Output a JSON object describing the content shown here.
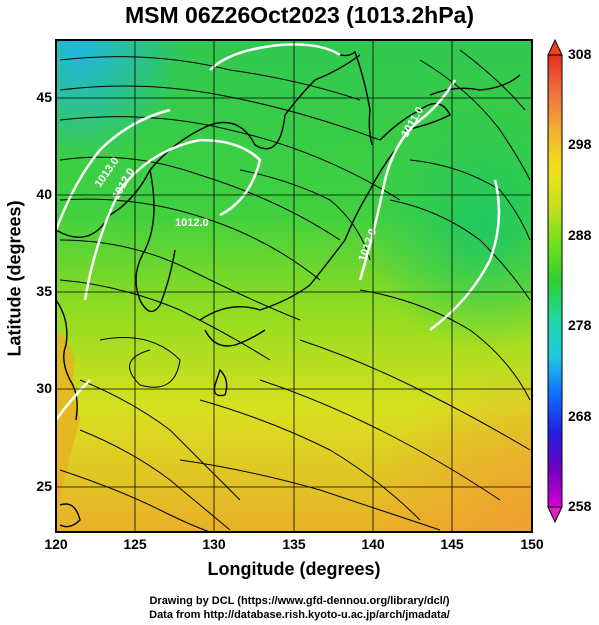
{
  "title": "MSM 06Z26Oct2023 (1013.2hPa)",
  "axes": {
    "xlabel": "Longitude (degrees)",
    "ylabel": "Latitude  (degrees)",
    "xticks": [
      "120",
      "125",
      "130",
      "135",
      "140",
      "145",
      "150"
    ],
    "yticks": [
      "25",
      "30",
      "35",
      "40",
      "45"
    ],
    "xlim": [
      120,
      150
    ],
    "ylim": [
      22.4,
      47.6
    ]
  },
  "colorbar": {
    "ticks": [
      "308",
      "298",
      "288",
      "278",
      "268",
      "258"
    ],
    "range": [
      258,
      308
    ],
    "colors": [
      "#d400d4",
      "#7000c0",
      "#2020e0",
      "#1070ff",
      "#20c8e0",
      "#20d8a0",
      "#30d030",
      "#70e020",
      "#c8e020",
      "#f0e020",
      "#f0b030",
      "#f07040",
      "#e83020"
    ]
  },
  "isobar_labels": [
    "1012.0",
    "1013.0",
    "1012.0",
    "1012.0",
    "1011.0"
  ],
  "credits": {
    "line1": "Drawing by DCL (https://www.gfd-dennou.org/library/dcl/)",
    "line2": "Data from http://database.rish.kyoto-u.ac.jp/arch/jmadata/"
  },
  "colors": {
    "ocean_warm": "#e8a020",
    "field_green": "#50d040",
    "field_yellow": "#d8e020",
    "isobar": "#ffffff",
    "streamline": "#000000"
  }
}
